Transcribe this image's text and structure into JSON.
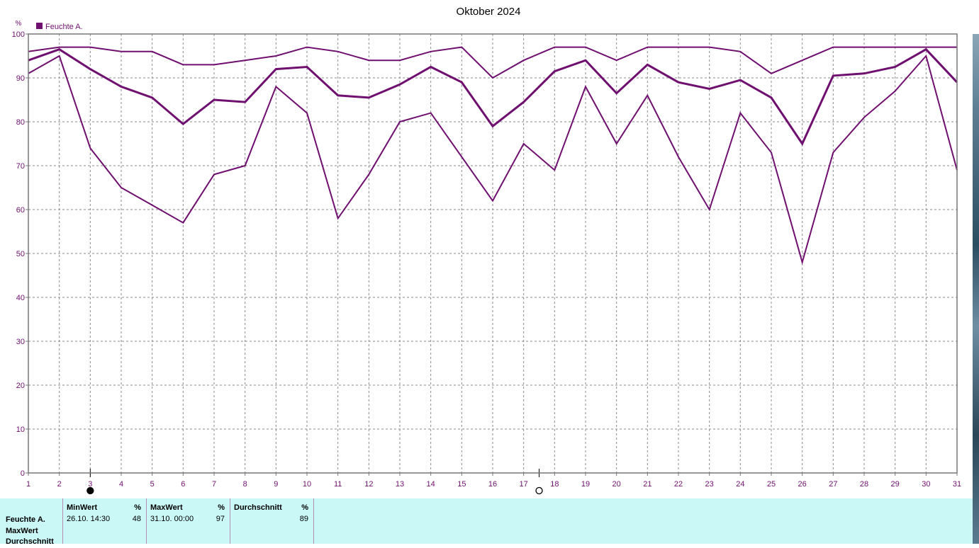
{
  "chart_data": {
    "type": "line",
    "title": "Oktober 2024",
    "ylabel": "%",
    "ylim": [
      0,
      100
    ],
    "xlim": [
      1,
      31
    ],
    "y_ticks": [
      0,
      10,
      20,
      30,
      40,
      50,
      60,
      70,
      80,
      90,
      100
    ],
    "x": [
      1,
      2,
      3,
      4,
      5,
      6,
      7,
      8,
      9,
      10,
      11,
      12,
      13,
      14,
      15,
      16,
      17,
      18,
      19,
      20,
      21,
      22,
      23,
      24,
      25,
      26,
      27,
      28,
      29,
      30,
      31
    ],
    "legend": {
      "label": "Feuchte A.",
      "color": "#6f0f6f",
      "position": "top-left"
    },
    "grid": true,
    "series": [
      {
        "values": [
          96,
          97,
          97,
          96,
          96,
          93,
          93,
          94,
          95,
          97,
          96,
          94,
          94,
          96,
          97,
          90,
          94,
          97,
          97,
          94,
          97,
          97,
          97,
          96,
          91,
          94,
          97,
          97,
          97,
          97,
          97
        ],
        "width": 2
      },
      {
        "values": [
          94,
          96.5,
          92,
          88,
          85.5,
          79.5,
          85,
          84.5,
          92,
          92.5,
          86,
          85.5,
          88.5,
          92.5,
          89,
          79,
          84.5,
          91.5,
          94,
          86.5,
          93,
          89,
          87.5,
          89.5,
          85.5,
          75,
          90.5,
          91,
          92.5,
          96.5,
          89
        ],
        "width": 3
      },
      {
        "values": [
          91,
          95,
          74,
          65,
          61,
          57,
          68,
          70,
          88,
          82,
          58,
          68,
          80,
          82,
          72,
          62,
          75,
          69,
          88,
          75,
          86,
          72,
          60,
          82,
          73,
          48,
          73,
          81,
          87,
          95,
          69
        ],
        "width": 2
      }
    ],
    "moon_markers": [
      {
        "x": 3.0,
        "phase": "new"
      },
      {
        "x": 17.5,
        "phase": "full"
      }
    ]
  },
  "stats": {
    "row_labels": [
      "Feuchte A.",
      "MaxWert",
      "Durchschnitt"
    ],
    "columns": [
      {
        "header": "MinWert",
        "unit": "%",
        "sub": "26.10.  14:30",
        "value": "48"
      },
      {
        "header": "MaxWert",
        "unit": "%",
        "sub": "31.10.  00:00",
        "value": "97"
      },
      {
        "header": "Durchschnitt",
        "unit": "%",
        "sub": "",
        "value": "89"
      }
    ]
  }
}
